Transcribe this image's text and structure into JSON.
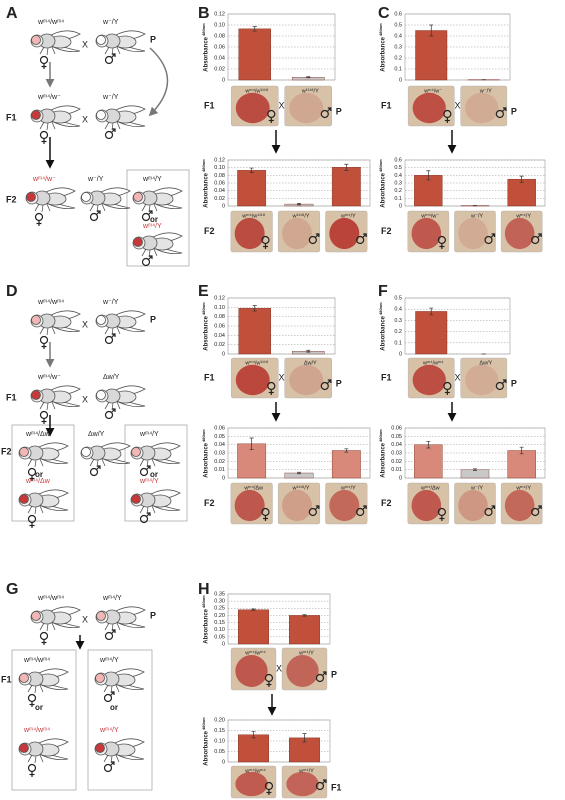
{
  "panel_letters": [
    "A",
    "B",
    "C",
    "D",
    "E",
    "F",
    "G",
    "H"
  ],
  "diagrams": [
    {
      "texts": [
        "wᵐ⁴/wᵐ⁴",
        "X",
        "w⁻/Y",
        "P",
        "F1",
        "wᵐ⁴/w⁻",
        "X",
        "w⁻/Y",
        "F2",
        "wᵐ⁴/w⁻",
        "w⁻/Y",
        "wᵐ⁴/Y",
        "or",
        "wᵐ⁴/Y"
      ]
    },
    {
      "texts": [
        "wᵐ⁴/wᵐ⁴",
        "X",
        "w⁻/Y",
        "P",
        "F1",
        "wᵐ⁴/w⁻",
        "X",
        "Δw/Y",
        "F2",
        "wᵐ⁴/Δw",
        "or",
        "wᵐ⁴/Δw",
        "Δw/Y",
        "wᵐ⁴/Y",
        "or",
        "wᵐ⁴/Y"
      ]
    },
    {
      "texts": [
        "wᵐ⁴/wᵐ⁴",
        "X",
        "wᵐ⁴/Y",
        "P",
        "F1",
        "wᵐ⁴/wᵐ⁴",
        "or",
        "wᵐ⁴/wᵐ⁴",
        "wᵐ⁴/Y",
        "or",
        "wᵐ⁴/Y"
      ]
    }
  ],
  "chart_data": [
    {
      "type": "bar",
      "ylabel": "Absorbance",
      "ylabel_sup": "480nm",
      "categories": [
        "wᵐ⁴/w¹¹¹⁸",
        "w¹¹¹⁸/Y"
      ],
      "values": [
        0.093,
        0.005
      ],
      "errors": [
        0.004,
        0.001
      ],
      "colors": [
        "#c0503a",
        "#c8c8c8"
      ],
      "ylim": [
        0,
        0.12
      ],
      "yticks": [
        0,
        0.02,
        0.04,
        0.06,
        0.08,
        {
          "value": 0.1,
          "label": "0.10"
        },
        0.12
      ],
      "grid": true,
      "row_label": "F1",
      "cross": "X",
      "side_label": "P"
    },
    {
      "type": "bar",
      "ylabel": "Absorbance",
      "ylabel_sup": "480nm",
      "categories": [
        "wᵐ⁴/w¹¹¹⁸",
        "w¹¹¹⁸/Y",
        "wᵐ⁴/Y"
      ],
      "values": [
        0.093,
        0.005,
        0.101
      ],
      "errors": [
        0.006,
        0.002,
        0.008
      ],
      "colors": [
        "#c0503a",
        "#c8c8c8",
        "#c0503a"
      ],
      "ylim": [
        0,
        0.12
      ],
      "yticks": [
        0,
        0.02,
        0.04,
        0.06,
        0.08,
        {
          "value": 0.1,
          "label": "0.10"
        },
        0.12
      ],
      "grid": true,
      "row_label": "F2"
    },
    {
      "type": "bar",
      "ylabel": "Absorbance",
      "ylabel_sup": "480nm",
      "categories": [
        "wᵐ⁴/w⁻",
        "w⁻/Y"
      ],
      "values": [
        0.45,
        0.003
      ],
      "errors": [
        0.05,
        0.001
      ],
      "colors": [
        "#c0503a",
        "#c8c8c8"
      ],
      "ylim": [
        0,
        0.6
      ],
      "yticks": [
        0,
        0.1,
        0.2,
        0.3,
        0.4,
        0.5,
        0.6
      ],
      "grid": true,
      "row_label": "F1",
      "cross": "X",
      "side_label": "P"
    },
    {
      "type": "bar",
      "ylabel": "Absorbance",
      "ylabel_sup": "480nm",
      "categories": [
        "wᵐ⁴/w⁻",
        "w⁻/Y",
        "wᵐ⁴/Y"
      ],
      "values": [
        0.4,
        0.005,
        0.35
      ],
      "errors": [
        0.06,
        0.002,
        0.04
      ],
      "colors": [
        "#c0503a",
        "#c8c8c8",
        "#c0503a"
      ],
      "ylim": [
        0,
        0.6
      ],
      "yticks": [
        0,
        0.1,
        0.2,
        0.3,
        0.4,
        0.5,
        0.6
      ],
      "grid": true,
      "row_label": "F2"
    },
    {
      "type": "bar",
      "ylabel": "Absorbance",
      "ylabel_sup": "480nm",
      "categories": [
        "wᵐ⁴/w¹¹¹⁸",
        "Δw/Y"
      ],
      "values": [
        0.098,
        0.006
      ],
      "errors": [
        0.006,
        0.002
      ],
      "colors": [
        "#c0503a",
        "#c8c8c8"
      ],
      "ylim": [
        0,
        0.12
      ],
      "yticks": [
        0,
        0.02,
        0.04,
        0.06,
        0.08,
        {
          "value": 0.1,
          "label": "0.10"
        },
        0.12
      ],
      "grid": true,
      "row_label": "F1",
      "cross": "X",
      "side_label": "P"
    },
    {
      "type": "bar",
      "ylabel": "Absorbance",
      "ylabel_sup": "480nm",
      "categories": [
        "wᵐ⁴/Δw",
        "w¹¹¹⁸/Y",
        "wᵐ⁴/Y"
      ],
      "values": [
        0.041,
        0.006,
        0.033
      ],
      "errors": [
        0.007,
        0.001,
        0.002
      ],
      "colors": [
        "#d9897a",
        "#c8c8c8",
        "#d9897a"
      ],
      "ylim": [
        0,
        0.06
      ],
      "yticks": [
        0,
        0.01,
        0.02,
        0.03,
        0.04,
        0.05,
        0.06
      ],
      "grid": true,
      "row_label": "F2"
    },
    {
      "type": "bar",
      "ylabel": "Absorbance",
      "ylabel_sup": "480nm",
      "categories": [
        "wᵐ⁴/wᵐ⁴",
        "Δw/Y"
      ],
      "values": [
        0.38,
        0
      ],
      "errors": [
        0.03,
        0
      ],
      "colors": [
        "#c0503a",
        "#c8c8c8"
      ],
      "ylim": [
        0,
        0.5
      ],
      "yticks": [
        0,
        0.1,
        0.2,
        0.3,
        0.4,
        0.5
      ],
      "grid": true,
      "row_label": "F1",
      "cross": "X",
      "side_label": "P"
    },
    {
      "type": "bar",
      "ylabel": "Absorbance",
      "ylabel_sup": "480nm",
      "categories": [
        "wᵐ⁴/Δw",
        "w⁻/Y",
        "wᵐ⁴/Y"
      ],
      "values": [
        0.04,
        0.01,
        0.033
      ],
      "errors": [
        0.004,
        0.001,
        0.004
      ],
      "colors": [
        "#d9897a",
        "#c8c8c8",
        "#d9897a"
      ],
      "ylim": [
        0,
        0.06
      ],
      "yticks": [
        0,
        0.01,
        0.02,
        0.03,
        0.04,
        0.05,
        0.06
      ],
      "grid": true,
      "row_label": "F2"
    },
    {
      "type": "bar",
      "ylabel": "Absorbance",
      "ylabel_sup": "480nm",
      "categories": [
        "wᵐ⁴/wᵐ⁴",
        "wᵐ⁴/Y"
      ],
      "values": [
        0.24,
        0.2
      ],
      "errors": [
        0.005,
        0.005
      ],
      "colors": [
        "#c0503a",
        "#c0503a"
      ],
      "ylim": [
        0,
        0.35
      ],
      "yticks": [
        0,
        0.05,
        {
          "value": 0.1,
          "label": "0.10"
        },
        0.15,
        {
          "value": 0.2,
          "label": "0.20"
        },
        0.25,
        {
          "value": 0.3,
          "label": "0.30"
        },
        0.35
      ],
      "grid": true,
      "cross": "X",
      "side_label": "P"
    },
    {
      "type": "bar",
      "ylabel": "Absorbance",
      "ylabel_sup": "480nm",
      "categories": [
        "wᵐ⁴/wᵐ⁴",
        "wᵐ⁴/Y"
      ],
      "values": [
        0.13,
        0.115
      ],
      "errors": [
        0.015,
        0.02
      ],
      "colors": [
        "#c0503a",
        "#c0503a"
      ],
      "ylim": [
        0,
        0.2
      ],
      "yticks": [
        0,
        0.05,
        {
          "value": 0.1,
          "label": "0.10"
        },
        0.15,
        {
          "value": 0.2,
          "label": "0.20"
        }
      ],
      "grid": true,
      "side_label": "F1"
    }
  ]
}
